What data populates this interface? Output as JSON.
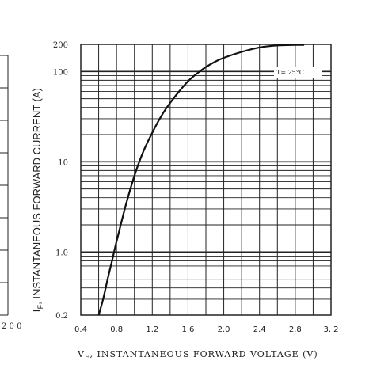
{
  "chart_data": {
    "type": "line",
    "xlabel": "V",
    "xlabel_sub": "F",
    "xlabel_rest": ", INSTANTANEOUS FORWARD VOLTAGE (V)",
    "ylabel": "I",
    "ylabel_sub": "F",
    "ylabel_rest": ", INSTANTANEOUS FORWARD CURRENT (A)",
    "y_scale": "log",
    "xlim": [
      0.4,
      3.2
    ],
    "ylim": [
      0.2,
      200
    ],
    "x_ticks": [
      {
        "value": 0.4,
        "label": "0.4"
      },
      {
        "value": 0.8,
        "label": "0.8"
      },
      {
        "value": 1.2,
        "label": "1.2"
      },
      {
        "value": 1.6,
        "label": "1.6"
      },
      {
        "value": 2.0,
        "label": "2.0"
      },
      {
        "value": 2.4,
        "label": "2.4"
      },
      {
        "value": 2.8,
        "label": "2.8"
      },
      {
        "value": 3.2,
        "label": "3. 2"
      }
    ],
    "y_ticks": [
      {
        "value": 0.2,
        "label": "0.2"
      },
      {
        "value": 1.0,
        "label": "1.0"
      },
      {
        "value": 10,
        "label": "10"
      },
      {
        "value": 100,
        "label": "100"
      },
      {
        "value": 200,
        "label": "200"
      }
    ],
    "grid": true,
    "annotation": "T= 25°C",
    "series": [
      {
        "x": [
          0.6,
          0.65,
          0.7,
          0.75,
          0.8,
          0.9,
          1.0,
          1.1,
          1.2,
          1.3,
          1.4,
          1.5,
          1.6,
          1.7,
          1.8,
          1.9,
          2.0,
          2.2,
          2.4,
          2.6,
          2.8,
          2.9
        ],
        "y": [
          0.2,
          0.3,
          0.5,
          0.8,
          1.3,
          3.2,
          7.0,
          13,
          21,
          32,
          45,
          60,
          78,
          95,
          112,
          128,
          142,
          165,
          185,
          195,
          197,
          197
        ]
      }
    ]
  },
  "left_panel": {
    "tick_label": "2 0 0"
  }
}
